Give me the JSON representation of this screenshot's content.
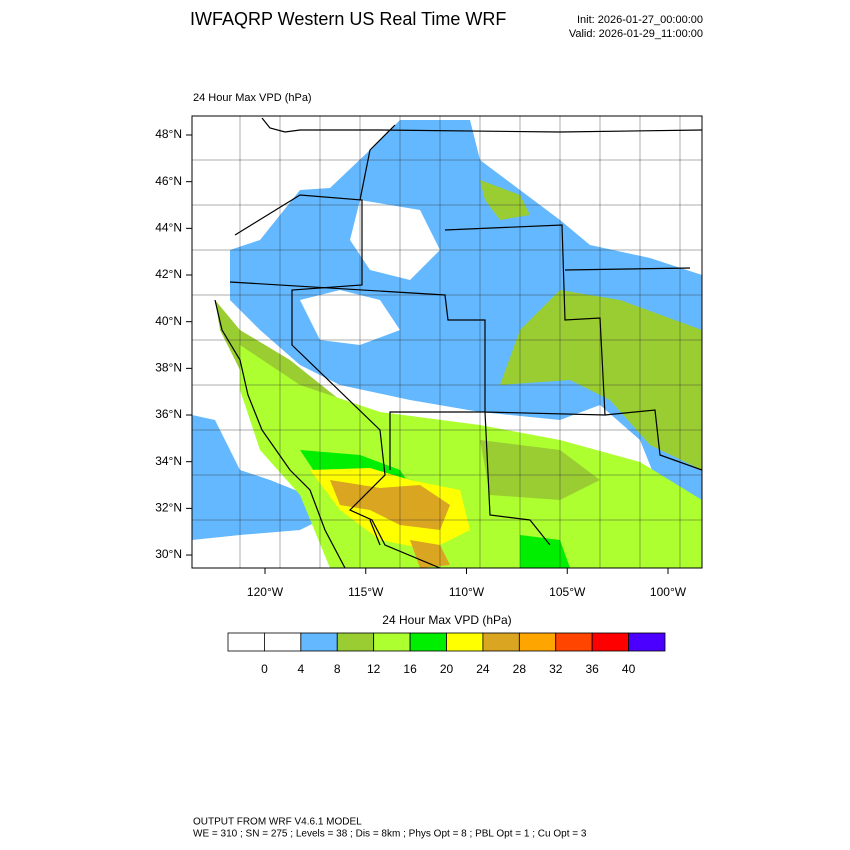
{
  "header": {
    "title": "IWFAQRP Western US Real Time WRF",
    "init": "Init: 2026-01-27_00:00:00",
    "valid": "Valid: 2026-01-29_11:00:00"
  },
  "map": {
    "title": "24 Hour Max VPD   (hPa)",
    "lat_labels": [
      "48°N",
      "46°N",
      "44°N",
      "42°N",
      "40°N",
      "38°N",
      "36°N",
      "34°N",
      "32°N",
      "30°N"
    ],
    "lon_labels": [
      "120°W",
      "115°W",
      "110°W",
      "105°W",
      "100°W"
    ]
  },
  "colorbar": {
    "title": "24 Hour Max VPD  (hPa)",
    "labels": [
      0,
      4,
      8,
      12,
      16,
      20,
      24,
      28,
      32,
      36,
      40
    ],
    "colors": [
      "#ffffff",
      "#ffffff",
      "#63b8ff",
      "#9acd32",
      "#adff2f",
      "#00ee00",
      "#ffff00",
      "#daa520",
      "#ffa500",
      "#ff4500",
      "#ff0000",
      "#4b00ff"
    ]
  },
  "footer": {
    "line1": "OUTPUT FROM WRF V4.6.1 MODEL",
    "line2": "WE = 310 ; SN = 275 ; Levels = 38 ; Dis = 8km ; Phys Opt = 8 ; PBL Opt = 1 ; Cu Opt = 3"
  }
}
